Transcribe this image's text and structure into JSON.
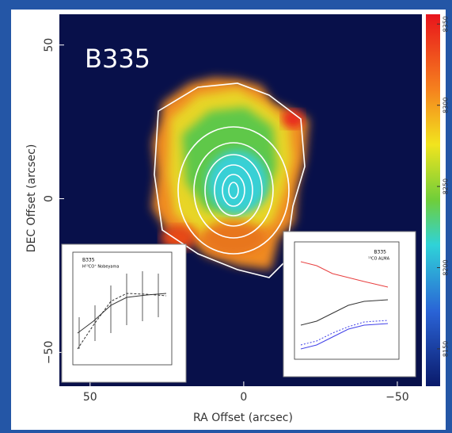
{
  "chart_data": {
    "type": "image-map",
    "title": "B335",
    "xlabel": "RA Offset (arcsec)",
    "ylabel": "DEC Offset (arcsec)",
    "xlim": [
      60,
      -58
    ],
    "xticks": [
      50,
      0,
      {
        "value": -50,
        "label": "−50"
      }
    ],
    "ylim": [
      -61,
      60
    ],
    "yticks": [
      {
        "value": -50,
        "label": "−50"
      },
      0,
      50
    ],
    "colorbar": {
      "lim": [
        8127,
        8356
      ],
      "ticks": [
        8150,
        8200,
        8250,
        8300,
        8350
      ]
    },
    "insets": [
      {
        "title": "B335",
        "subtitle": "H¹³CO⁺ Nobeyama"
      },
      {
        "title": "B335",
        "subtitle": "¹³CO ALMA"
      }
    ]
  }
}
